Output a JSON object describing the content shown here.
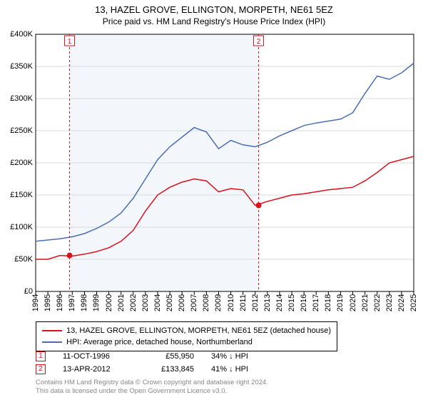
{
  "title_line1": "13, HAZEL GROVE, ELLINGTON, MORPETH, NE61 5EZ",
  "title_line2": "Price paid vs. HM Land Registry's House Price Index (HPI)",
  "chart": {
    "type": "line",
    "background_color": "#ffffff",
    "plot_background_color": "#ffffff",
    "shaded_band_color": "#f3f6fb",
    "grid_color": "#d9d9d9",
    "axis_color": "#000000",
    "x_years": [
      1994,
      1995,
      1996,
      1997,
      1998,
      1999,
      2000,
      2001,
      2002,
      2003,
      2004,
      2005,
      2006,
      2007,
      2008,
      2009,
      2010,
      2011,
      2012,
      2013,
      2014,
      2015,
      2016,
      2017,
      2018,
      2019,
      2020,
      2021,
      2022,
      2023,
      2024,
      2025
    ],
    "y_ticks": [
      0,
      50000,
      100000,
      150000,
      200000,
      250000,
      300000,
      350000,
      400000
    ],
    "y_tick_labels": [
      "£0",
      "£50K",
      "£100K",
      "£150K",
      "£200K",
      "£250K",
      "£300K",
      "£350K",
      "£400K"
    ],
    "ylim": [
      0,
      400000
    ],
    "xlim": [
      1994,
      2025
    ],
    "label_fontsize": 11,
    "title_fontsize": 13,
    "line_width": 1.5,
    "series": {
      "property": {
        "label": "13, HAZEL GROVE, ELLINGTON, MORPETH, NE61 5EZ (detached house)",
        "color": "#d8121b",
        "y": [
          50000,
          50000,
          55950,
          55000,
          58000,
          62000,
          68000,
          78000,
          95000,
          125000,
          150000,
          162000,
          170000,
          175000,
          172000,
          155000,
          160000,
          158000,
          133845,
          140000,
          145000,
          150000,
          152000,
          155000,
          158000,
          160000,
          162000,
          172000,
          185000,
          200000,
          205000,
          210000
        ]
      },
      "hpi": {
        "label": "HPI: Average price, detached house, Northumberland",
        "color": "#4a6fb3",
        "y": [
          78000,
          80000,
          82000,
          85000,
          90000,
          98000,
          108000,
          122000,
          145000,
          175000,
          205000,
          225000,
          240000,
          255000,
          248000,
          222000,
          235000,
          228000,
          225000,
          232000,
          242000,
          250000,
          258000,
          262000,
          265000,
          268000,
          278000,
          308000,
          335000,
          330000,
          340000,
          355000
        ]
      }
    },
    "sale_markers": [
      {
        "n": "1",
        "year": 1996.78,
        "price": 55950,
        "color": "#d8121b"
      },
      {
        "n": "2",
        "year": 2012.28,
        "price": 133845,
        "color": "#d8121b"
      }
    ],
    "marker_dashed_color": "#d8121b",
    "marker_dot_radius": 4
  },
  "legend": {
    "border_color": "#000000",
    "rows": [
      {
        "color": "#d8121b",
        "text": "13, HAZEL GROVE, ELLINGTON, MORPETH, NE61 5EZ (detached house)"
      },
      {
        "color": "#4a6fb3",
        "text": "HPI: Average price, detached house, Northumberland"
      }
    ]
  },
  "sales": [
    {
      "n": "1",
      "color": "#d8121b",
      "date": "11-OCT-1996",
      "price": "£55,950",
      "pct": "34% ↓ HPI"
    },
    {
      "n": "2",
      "color": "#d8121b",
      "date": "13-APR-2012",
      "price": "£133,845",
      "pct": "41% ↓ HPI"
    }
  ],
  "footer_line1": "Contains HM Land Registry data © Crown copyright and database right 2024.",
  "footer_line2": "This data is licensed under the Open Government Licence v3.0."
}
